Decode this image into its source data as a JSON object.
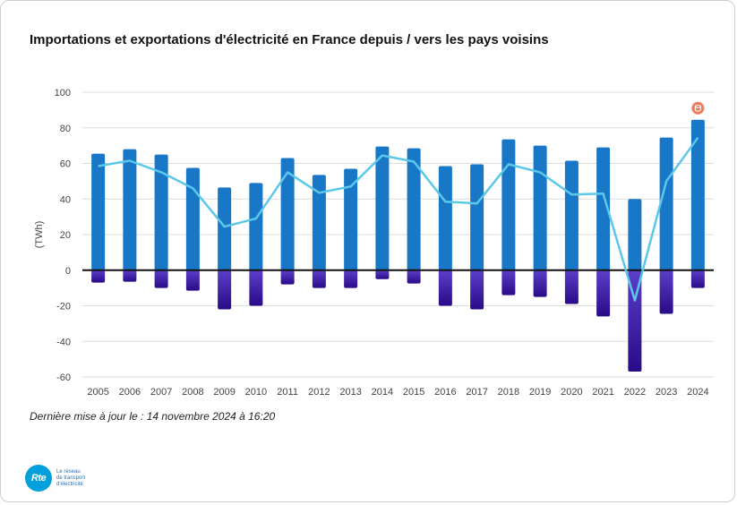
{
  "chart_data": {
    "type": "bar",
    "title": "Importations et exportations d'électricité en France depuis / vers les pays voisins",
    "ylabel": "(TWh)",
    "xlabel": "",
    "ylim": [
      -60,
      100
    ],
    "yticks": [
      100,
      80,
      60,
      40,
      20,
      0,
      -20,
      -40,
      -60
    ],
    "grid": true,
    "categories": [
      "2005",
      "2006",
      "2007",
      "2008",
      "2009",
      "2010",
      "2011",
      "2012",
      "2013",
      "2014",
      "2015",
      "2016",
      "2017",
      "2018",
      "2019",
      "2020",
      "2021",
      "2022",
      "2023",
      "2024"
    ],
    "series": [
      {
        "type": "bar",
        "color": "#1877c6",
        "values": [
          65.5,
          68,
          65,
          57.5,
          46.5,
          49,
          63,
          53.5,
          57,
          69.5,
          68.5,
          58.5,
          59.5,
          73.5,
          70,
          61.5,
          69,
          40,
          74.5,
          84.5
        ]
      },
      {
        "type": "bar",
        "color_top": "#5b3fc9",
        "color_bottom": "#2a0a87",
        "values": [
          -7,
          -6.5,
          -10,
          -11.5,
          -22,
          -20,
          -8,
          -10,
          -10,
          -5,
          -7.5,
          -20,
          -22,
          -14,
          -15,
          -19,
          -26,
          -57,
          -24.5,
          -10
        ]
      },
      {
        "type": "line",
        "color": "#5bc8ea",
        "values": [
          58.5,
          61.5,
          55,
          46,
          24.5,
          29,
          55,
          43.5,
          47,
          64.5,
          61,
          38.5,
          37.5,
          59.5,
          55,
          42.5,
          43,
          -17,
          50,
          74.5
        ]
      }
    ]
  },
  "footer": {
    "update_text": "Dernière mise à jour le : 14 novembre 2024 à 16:20"
  },
  "logo": {
    "badge": "Rte",
    "text_line1": "Le réseau",
    "text_line2": "de transport",
    "text_line3": "d'électricité"
  },
  "colors": {
    "marker_badge": "#f07c5a"
  },
  "icons": {
    "marker_badge": "database-icon"
  }
}
